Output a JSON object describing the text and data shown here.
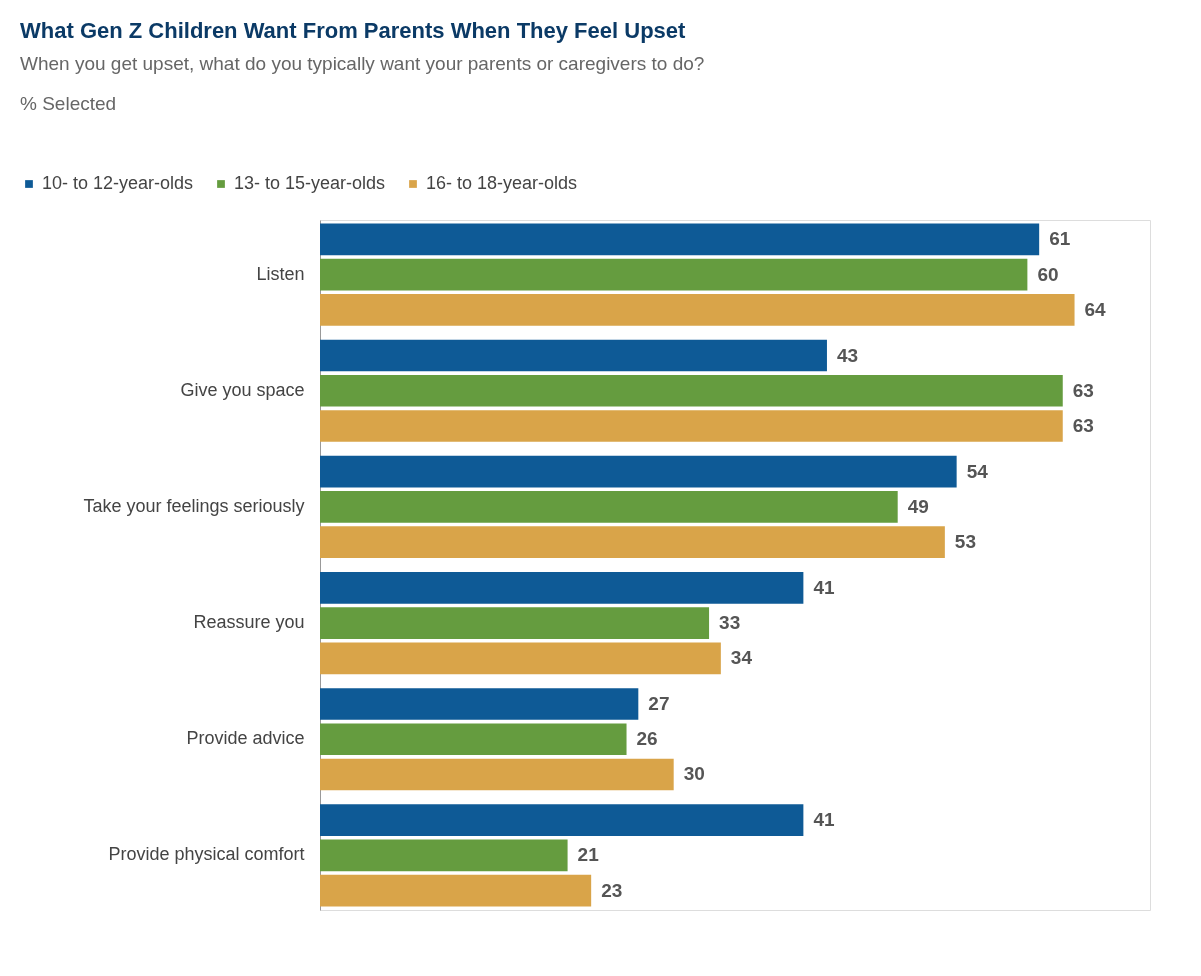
{
  "chart_data": {
    "type": "bar",
    "orientation": "horizontal",
    "title": "What Gen Z Children Want From Parents When They Feel Upset",
    "subtitle": "When you get upset, what do you typically want your parents or caregivers to do?",
    "annotations": [
      "% Selected"
    ],
    "categories": [
      "Listen",
      "Give you space",
      "Take your feelings seriously",
      "Reassure you",
      "Provide advice",
      "Provide physical comfort"
    ],
    "series": [
      {
        "name": "10- to 12-year-olds",
        "color": "#0e5a96",
        "values": [
          61,
          43,
          54,
          41,
          27,
          41
        ]
      },
      {
        "name": "13- to 15-year-olds",
        "color": "#659c3f",
        "values": [
          60,
          63,
          49,
          33,
          26,
          21
        ]
      },
      {
        "name": "16- to 18-year-olds",
        "color": "#d9a449",
        "values": [
          64,
          63,
          53,
          34,
          30,
          23
        ]
      }
    ],
    "data_labels": true,
    "legend": "top left",
    "grid": false,
    "tick_labels": "y"
  }
}
